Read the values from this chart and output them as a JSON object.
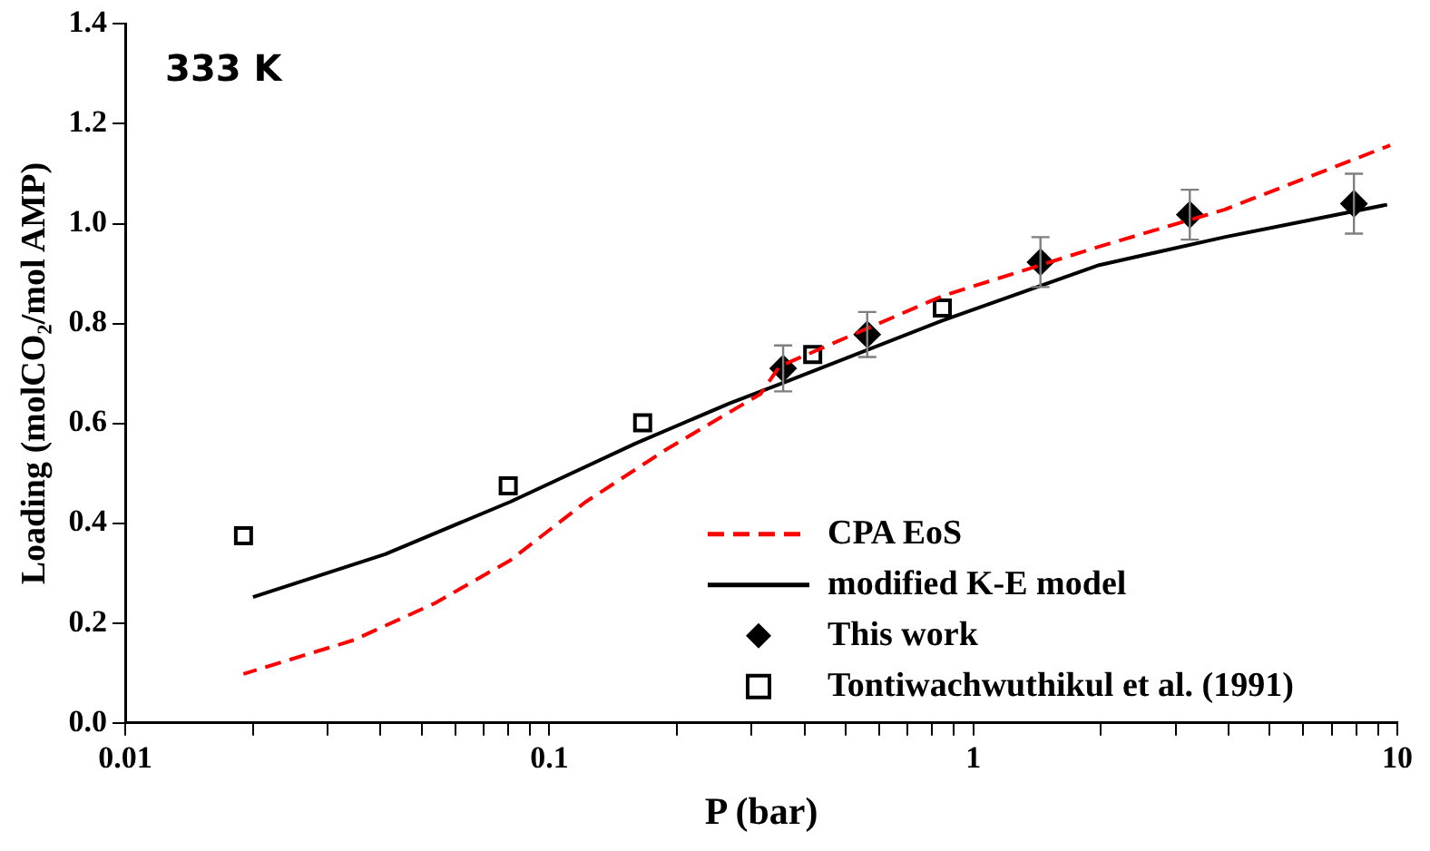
{
  "chart_data": {
    "type": "scatter",
    "xlabel": "P (bar)",
    "ylabel": "Loading (molCO₂/mol AMP)",
    "log": "x",
    "xlim": [
      0.01,
      10
    ],
    "xticks": [
      0.01,
      {
        "value": 0.02,
        "label": null
      },
      {
        "value": 0.03,
        "label": null
      },
      {
        "value": 0.04,
        "label": null
      },
      {
        "value": 0.05,
        "label": null
      },
      {
        "value": 0.06,
        "label": null
      },
      {
        "value": 0.07,
        "label": null
      },
      {
        "value": 0.08,
        "label": null
      },
      {
        "value": 0.09,
        "label": null
      },
      0.1,
      {
        "value": 0.2,
        "label": null
      },
      {
        "value": 0.3,
        "label": null
      },
      {
        "value": 0.4,
        "label": null
      },
      {
        "value": 0.5,
        "label": null
      },
      {
        "value": 0.6,
        "label": null
      },
      {
        "value": 0.7,
        "label": null
      },
      {
        "value": 0.8,
        "label": null
      },
      {
        "value": 0.9,
        "label": null
      },
      1,
      {
        "value": 2,
        "label": null
      },
      {
        "value": 3,
        "label": null
      },
      {
        "value": 4,
        "label": null
      },
      {
        "value": 5,
        "label": null
      },
      {
        "value": 6,
        "label": null
      },
      {
        "value": 7,
        "label": null
      },
      {
        "value": 8,
        "label": null
      },
      {
        "value": 9,
        "label": null
      },
      10
    ],
    "ylim": [
      0,
      1.4
    ],
    "yticks": [
      {
        "value": 0,
        "label": "0.0"
      },
      0.2,
      0.4,
      0.6,
      0.8,
      {
        "value": 1,
        "label": "1.0"
      },
      1.2,
      1.4
    ],
    "grid": false,
    "legend": "bottom right",
    "annotations": [
      "333 K"
    ],
    "series": [
      {
        "name": "CPA EoS",
        "type": "line",
        "line_style": "dashed",
        "marker": "none",
        "color": "#ff0000",
        "x": [
          0.019,
          0.0346,
          0.0538,
          0.081,
          0.122,
          0.189,
          0.315,
          0.349,
          0.845,
          1.98,
          3.91,
          9.62
        ],
        "values": [
          0.098,
          0.166,
          0.24,
          0.326,
          0.443,
          0.548,
          0.659,
          0.714,
          0.855,
          0.954,
          1.028,
          1.157
        ]
      },
      {
        "name": "modified K-E model",
        "type": "line",
        "line_style": "solid",
        "marker": "none",
        "color": "#000000",
        "x": [
          0.02,
          0.041,
          0.081,
          0.16,
          0.266,
          0.361,
          0.845,
          1.98,
          3.91,
          9.46
        ],
        "values": [
          0.252,
          0.338,
          0.443,
          0.56,
          0.64,
          0.683,
          0.806,
          0.917,
          0.973,
          1.038
        ]
      },
      {
        "name": "This work",
        "type": "scatter",
        "marker": "diamond",
        "color": "#000000",
        "x": [
          0.356,
          0.562,
          1.44,
          3.24,
          7.9
        ],
        "values": [
          0.71,
          0.778,
          0.923,
          1.018,
          1.04
        ],
        "errors": [
          0.046,
          0.045,
          0.05,
          0.05,
          0.06
        ]
      },
      {
        "name": "Tontiwachwuthikul et al. (1991)",
        "type": "scatter",
        "marker": "square",
        "color": "#000000",
        "x": [
          0.019,
          0.08,
          0.166,
          0.418,
          0.845
        ],
        "values": [
          0.375,
          0.475,
          0.601,
          0.738,
          0.831
        ]
      }
    ]
  }
}
